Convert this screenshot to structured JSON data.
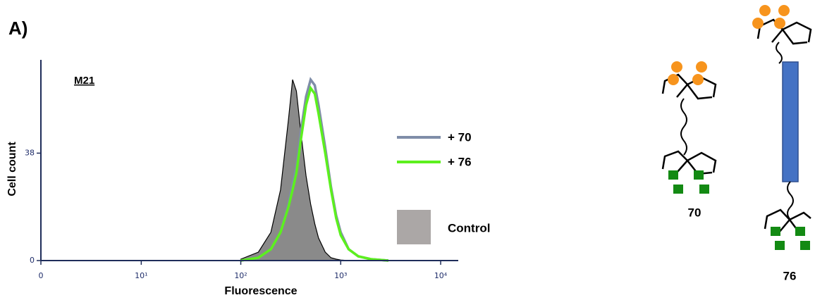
{
  "chart_data": {
    "type": "line",
    "panel_label": "A)",
    "annotation": "M21",
    "xlabel": "Fluorescence",
    "ylabel": "Cell count",
    "xscale": "asinh",
    "xlim": [
      0,
      15000
    ],
    "ylim": [
      0,
      71
    ],
    "xticks": [
      0,
      {
        "value": 10,
        "label": "10¹"
      },
      {
        "value": 100,
        "label": "10²"
      },
      {
        "value": 1000,
        "label": "10³"
      },
      {
        "value": 10000,
        "label": "10⁴"
      }
    ],
    "yticks": [
      0,
      38
    ],
    "legend": "right",
    "x": [
      100,
      150,
      200,
      250,
      300,
      330,
      360,
      400,
      450,
      500,
      550,
      600,
      700,
      800,
      900,
      1000,
      1200,
      1500,
      2000,
      3000
    ],
    "series": [
      {
        "name": "Control",
        "color": "#8a8a8a",
        "legend_color": "#aba7a6",
        "fill": true,
        "values": [
          0.5,
          3,
          10,
          25,
          50,
          64,
          60,
          45,
          30,
          20,
          13,
          8,
          3,
          1,
          0.5,
          0.2,
          0,
          0,
          0,
          0
        ]
      },
      {
        "name": "+ 70",
        "color": "#7f8da8",
        "fill": false,
        "values": [
          0,
          1,
          4,
          10,
          20,
          27,
          33,
          46,
          58,
          64,
          62,
          55,
          40,
          26,
          16,
          10,
          4,
          1.5,
          0.5,
          0
        ]
      },
      {
        "name": "+ 76",
        "color": "#5cf01e",
        "fill": false,
        "values": [
          0,
          1,
          4,
          10,
          19,
          25,
          31,
          43,
          55,
          61,
          59,
          52,
          38,
          25,
          15,
          9,
          4,
          1.5,
          0.5,
          0
        ]
      }
    ]
  },
  "diagram": {
    "labels": [
      "70",
      "76"
    ]
  }
}
